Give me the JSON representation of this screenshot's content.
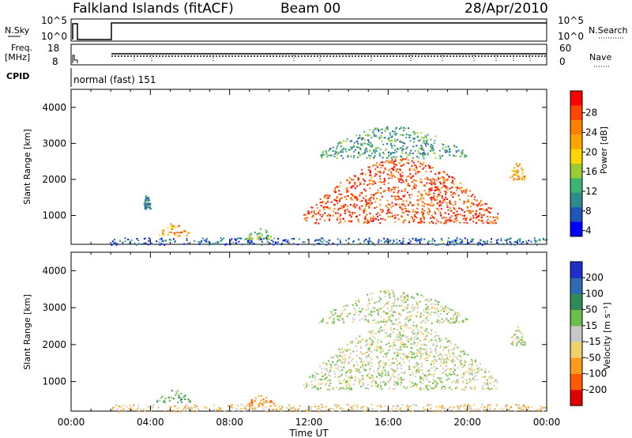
{
  "header": {
    "station": "Falkland Islands (fitACF)",
    "beam": "Beam 00",
    "date": "28/Apr/2010"
  },
  "strip_nsky": {
    "label": "N.Sky",
    "left_ticks": [
      "10^5",
      "10^0"
    ],
    "right_ticks": [
      "10^5",
      "10^0"
    ],
    "right_label": "N.Search"
  },
  "strip_freq": {
    "label_lines": [
      "Freq.",
      "[MHz]"
    ],
    "left_ticks": [
      "18",
      "8"
    ],
    "right_ticks": [
      "60",
      "0"
    ],
    "right_label": "Nave"
  },
  "cpid": {
    "label": "CPID",
    "value": "normal (fast) 151"
  },
  "power_panel": {
    "ylabel": "Slant Range [km]",
    "colorbar_title": "Power [dB]",
    "colorbar_ticks": [
      "28",
      "24",
      "20",
      "16",
      "12",
      "8",
      "4"
    ],
    "colors": [
      "#0000ff",
      "#1f57b8",
      "#2e8b8b",
      "#3cb371",
      "#9acd32",
      "#ffd700",
      "#ffa500",
      "#ff7f00",
      "#ff4500",
      "#ff0000"
    ]
  },
  "velocity_panel": {
    "ylabel": "Slant Range [km]",
    "colorbar_title": "Velocity [m s⁻¹]",
    "colorbar_ticks": [
      "200",
      "100",
      "50",
      "15",
      "-15",
      "-50",
      "-100",
      "-200"
    ],
    "colors": [
      "#1f2fc8",
      "#2e6bb0",
      "#2e8b57",
      "#6cc04a",
      "#c8c8c8",
      "#f2d06b",
      "#ff9a1a",
      "#ff5a00",
      "#e00000"
    ]
  },
  "x_axis": {
    "label": "Time UT",
    "ticks": [
      "00:00",
      "04:00",
      "08:00",
      "12:00",
      "16:00",
      "20:00",
      "00:00"
    ]
  },
  "chart_data": [
    {
      "type": "heatmap",
      "title": "Power [dB]",
      "xlabel": "Time UT",
      "ylabel": "Slant Range [km]",
      "x_ticks": [
        "00:00",
        "04:00",
        "08:00",
        "12:00",
        "16:00",
        "20:00",
        "00:00"
      ],
      "xlim_hours": [
        0,
        24
      ],
      "y_ticks": [
        1000,
        2000,
        3000,
        4000
      ],
      "ylim": [
        200,
        4500
      ],
      "color_scale": [
        4,
        8,
        12,
        16,
        20,
        24,
        28
      ],
      "echo_regions": [
        {
          "t_start": 2.0,
          "t_end": 24.0,
          "range_min": 200,
          "range_max": 400,
          "power": 6
        },
        {
          "t_start": 4.3,
          "t_end": 6.0,
          "range_min": 450,
          "range_max": 800,
          "power": 22
        },
        {
          "t_start": 8.8,
          "t_end": 10.3,
          "range_min": 350,
          "range_max": 650,
          "power": 12
        },
        {
          "t_start": 3.6,
          "t_end": 4.0,
          "range_min": 1200,
          "range_max": 1600,
          "power": 8
        },
        {
          "t_start": 11.7,
          "t_end": 21.5,
          "range_min": 800,
          "range_max": 2600,
          "power": 26
        },
        {
          "t_start": 12.5,
          "t_end": 20.0,
          "range_min": 2600,
          "range_max": 3500,
          "power": 10
        },
        {
          "t_start": 22.1,
          "t_end": 22.9,
          "range_min": 2000,
          "range_max": 2500,
          "power": 20
        }
      ]
    },
    {
      "type": "heatmap",
      "title": "Velocity [m s⁻¹]",
      "xlabel": "Time UT",
      "ylabel": "Slant Range [km]",
      "x_ticks": [
        "00:00",
        "04:00",
        "08:00",
        "12:00",
        "16:00",
        "20:00",
        "00:00"
      ],
      "xlim_hours": [
        0,
        24
      ],
      "y_ticks": [
        1000,
        2000,
        3000,
        4000
      ],
      "ylim": [
        200,
        4500
      ],
      "color_scale": [
        200,
        100,
        50,
        15,
        -15,
        -50,
        -100,
        -200
      ],
      "echo_regions": [
        {
          "t_start": 2.0,
          "t_end": 24.0,
          "range_min": 200,
          "range_max": 400,
          "velocity": -30
        },
        {
          "t_start": 4.3,
          "t_end": 6.0,
          "range_min": 450,
          "range_max": 800,
          "velocity": 40
        },
        {
          "t_start": 8.8,
          "t_end": 10.3,
          "range_min": 350,
          "range_max": 650,
          "velocity": -80
        },
        {
          "t_start": 11.7,
          "t_end": 21.5,
          "range_min": 800,
          "range_max": 2600,
          "velocity": 0
        },
        {
          "t_start": 12.5,
          "t_end": 20.0,
          "range_min": 2600,
          "range_max": 3500,
          "velocity": 0
        },
        {
          "t_start": 22.1,
          "t_end": 22.9,
          "range_min": 2000,
          "range_max": 2500,
          "velocity": 0
        }
      ]
    }
  ]
}
